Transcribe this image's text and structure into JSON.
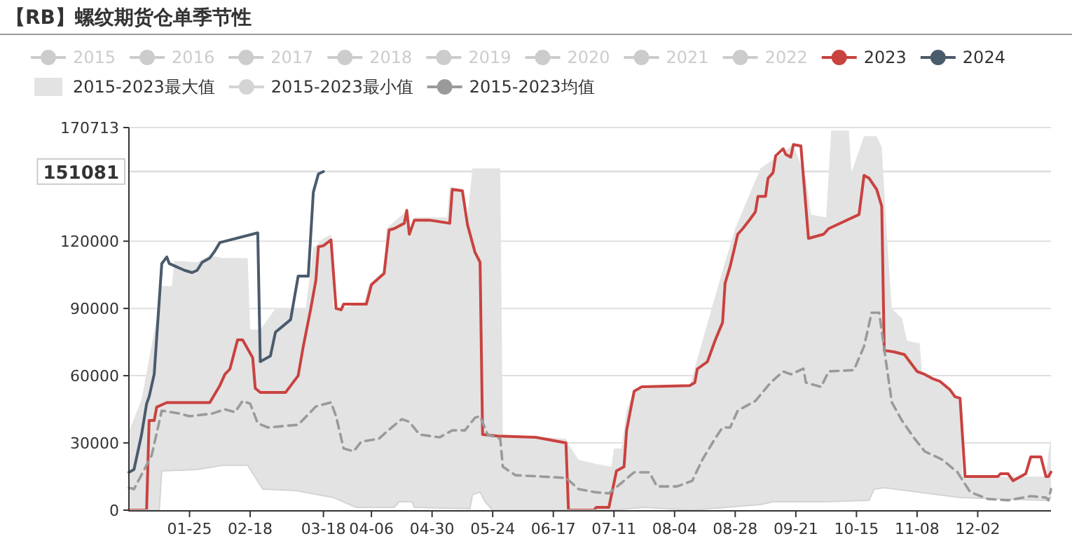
{
  "chart_data": {
    "type": "line",
    "title": "【RB】螺纹期货仓单季节性",
    "legend": "top",
    "grid": "y",
    "xlim": [
      "--01-01",
      "--12-31"
    ],
    "xticks": [
      {
        "value": "--01-25",
        "label": "01-25"
      },
      {
        "value": "--02-18",
        "label": "02-18"
      },
      {
        "value": "--03-18",
        "label": "03-18"
      },
      {
        "value": "--04-06",
        "label": "04-06"
      },
      {
        "value": "--04-30",
        "label": "04-30"
      },
      {
        "value": "--05-24",
        "label": "05-24"
      },
      {
        "value": "--06-17",
        "label": "06-17"
      },
      {
        "value": "--07-11",
        "label": "07-11"
      },
      {
        "value": "--08-04",
        "label": "08-04"
      },
      {
        "value": "--08-28",
        "label": "08-28"
      },
      {
        "value": "--09-21",
        "label": "09-21"
      },
      {
        "value": "--10-15",
        "label": "10-15"
      },
      {
        "value": "--11-08",
        "label": "11-08"
      },
      {
        "value": "--12-02",
        "label": "12-02"
      }
    ],
    "ylim": [
      0,
      170713
    ],
    "yticks": [
      0,
      30000,
      60000,
      90000,
      120000,
      170713
    ],
    "ref_lines": [
      {
        "axis": "y",
        "value": 151081,
        "label": "151081",
        "color": "#dddddd"
      }
    ],
    "series": [
      {
        "name": "2015",
        "color": "#cccccc"
      },
      {
        "name": "2016",
        "color": "#cccccc"
      },
      {
        "name": "2017",
        "color": "#cccccc"
      },
      {
        "name": "2018",
        "color": "#cccccc"
      },
      {
        "name": "2019",
        "color": "#cccccc"
      },
      {
        "name": "2020",
        "color": "#cccccc"
      },
      {
        "name": "2021",
        "color": "#cccccc"
      },
      {
        "name": "2022",
        "color": "#cccccc"
      },
      {
        "name": "2023",
        "color": "#c9423f",
        "type": "line",
        "x": [
          "--01-01",
          "--01-08",
          "--01-09",
          "--01-11",
          "--01-12",
          "--01-16",
          "--02-02",
          "--02-06",
          "--02-08",
          "--02-10",
          "--02-13",
          "--02-15",
          "--02-19",
          "--02-20",
          "--02-22",
          "--03-03",
          "--03-08",
          "--03-10",
          "--03-13",
          "--03-15",
          "--03-16",
          "--03-18",
          "--03-21",
          "--03-23",
          "--03-25",
          "--03-26",
          "--04-04",
          "--04-06",
          "--04-11",
          "--04-13",
          "--04-15",
          "--04-19",
          "--04-20",
          "--04-21",
          "--04-23",
          "--04-29",
          "--05-07",
          "--05-08",
          "--05-12",
          "--05-14",
          "--05-17",
          "--05-19",
          "--05-20",
          "--05-26",
          "--06-10",
          "--06-16",
          "--06-22",
          "--06-23",
          "--07-03",
          "--07-04",
          "--07-09",
          "--07-12",
          "--07-15",
          "--07-16",
          "--07-19",
          "--07-22",
          "--08-10",
          "--08-12",
          "--08-13",
          "--08-17",
          "--08-20",
          "--08-23",
          "--08-24",
          "--08-26",
          "--08-29",
          "--08-31",
          "--09-03",
          "--09-05",
          "--09-06",
          "--09-09",
          "--09-10",
          "--09-12",
          "--09-13",
          "--09-16",
          "--09-17",
          "--09-19",
          "--09-20",
          "--09-23",
          "--09-26",
          "--10-02",
          "--10-04",
          "--10-16",
          "--10-18",
          "--10-20",
          "--10-23",
          "--10-25",
          "--10-26",
          "--10-30",
          "--11-03",
          "--11-08",
          "--11-11",
          "--11-14",
          "--11-17",
          "--11-21",
          "--11-23",
          "--11-25",
          "--11-27",
          "--12-10",
          "--12-11",
          "--12-14",
          "--12-16",
          "--12-21",
          "--12-23",
          "--12-27",
          "--12-29",
          "--12-30",
          "--12-31"
        ],
        "values": [
          0,
          0,
          40000,
          40000,
          46000,
          48000,
          48000,
          55600,
          60600,
          63000,
          76000,
          76000,
          68000,
          54400,
          52500,
          52500,
          60000,
          73000,
          90000,
          102500,
          117500,
          118000,
          120600,
          90000,
          89400,
          91900,
          91900,
          100600,
          105600,
          125000,
          125600,
          128000,
          133750,
          123100,
          129400,
          129400,
          128000,
          143100,
          142500,
          127500,
          115000,
          110600,
          33750,
          33100,
          32500,
          31250,
          30000,
          0,
          0,
          1250,
          1250,
          17500,
          19400,
          35600,
          53100,
          55000,
          55600,
          56900,
          63000,
          66250,
          75600,
          83750,
          101250,
          108750,
          123100,
          125600,
          130000,
          133100,
          140000,
          140000,
          148100,
          150600,
          158100,
          161250,
          158750,
          157500,
          163100,
          162500,
          121250,
          123100,
          125600,
          131900,
          149400,
          148100,
          143100,
          135600,
          71250,
          70600,
          69400,
          61900,
          60600,
          58750,
          57500,
          53750,
          50600,
          50000,
          15000,
          15000,
          16250,
          16250,
          13100,
          16250,
          23750,
          23750,
          15000,
          15000,
          17000
        ]
      },
      {
        "name": "2024",
        "color": "#4a5b6c",
        "type": "line",
        "x": [
          "--01-01",
          "--01-03",
          "--01-06",
          "--01-08",
          "--01-09",
          "--01-11",
          "--01-14",
          "--01-16",
          "--01-17",
          "--01-23",
          "--01-26",
          "--01-28",
          "--01-30",
          "--02-02",
          "--02-04",
          "--02-06",
          "--02-21",
          "--02-22",
          "--02-26",
          "--02-28",
          "--03-01",
          "--03-05",
          "--03-08",
          "--03-12",
          "--03-14",
          "--03-16",
          "--03-18"
        ],
        "values": [
          16900,
          18100,
          33700,
          47500,
          50600,
          60600,
          110000,
          113000,
          110000,
          107000,
          106000,
          107000,
          110600,
          112500,
          115600,
          119400,
          123750,
          66250,
          68750,
          79400,
          81250,
          85000,
          104400,
          104400,
          141900,
          150000,
          151081
        ]
      },
      {
        "name": "2015-2023最大值",
        "color": "#e3e3e3",
        "type": "area",
        "x": [
          "--01-01",
          "--01-06",
          "--01-12",
          "--01-14",
          "--01-18",
          "--01-19",
          "--01-28",
          "--02-02",
          "--02-07",
          "--02-17",
          "--02-18",
          "--02-22",
          "--02-28",
          "--03-11",
          "--03-14",
          "--03-18",
          "--03-21",
          "--03-22",
          "--04-03",
          "--04-05",
          "--04-11",
          "--04-12",
          "--04-20",
          "--04-21",
          "--04-23",
          "--05-06",
          "--05-07",
          "--05-12",
          "--05-14",
          "--05-16",
          "--05-27",
          "--05-28",
          "--06-22",
          "--06-23",
          "--06-27",
          "--07-04",
          "--07-10",
          "--07-11",
          "--07-14",
          "--07-16",
          "--07-19",
          "--08-10",
          "--08-23",
          "--08-28",
          "--09-07",
          "--09-15",
          "--09-20",
          "--09-25",
          "--09-27",
          "--10-03",
          "--10-05",
          "--10-12",
          "--10-13",
          "--10-18",
          "--10-23",
          "--10-25",
          "--10-27",
          "--10-29",
          "--11-02",
          "--11-04",
          "--11-09",
          "--11-10",
          "--11-14",
          "--11-22",
          "--11-25",
          "--11-26",
          "--12-29",
          "--12-30",
          "--12-31"
        ],
        "values": [
          35000,
          49400,
          85600,
          100000,
          100000,
          111250,
          110600,
          113750,
          112500,
          112500,
          80600,
          80600,
          90000,
          90000,
          116900,
          121250,
          123100,
          90000,
          91900,
          100600,
          106900,
          125600,
          133750,
          123100,
          130600,
          130600,
          144400,
          143100,
          130600,
          152500,
          152500,
          33750,
          31900,
          29400,
          22500,
          20600,
          19400,
          27500,
          27500,
          44400,
          53750,
          55600,
          106900,
          125600,
          152500,
          158750,
          163100,
          148100,
          131900,
          130600,
          169400,
          169400,
          150600,
          166900,
          166900,
          161900,
          123100,
          90000,
          85600,
          75600,
          74400,
          60600,
          58750,
          52500,
          49400,
          15000,
          15000,
          25600,
          31900
        ]
      },
      {
        "name": "2015-2023最小值",
        "color": "#d4d4d4",
        "type": "line",
        "x": [
          "--01-01",
          "--01-13",
          "--01-14",
          "--01-28",
          "--02-07",
          "--02-17",
          "--02-23",
          "--03-07",
          "--03-22",
          "--03-31",
          "--04-15",
          "--04-17",
          "--04-22",
          "--04-23",
          "--05-15",
          "--05-16",
          "--05-19",
          "--05-21",
          "--05-24",
          "--07-10",
          "--07-23",
          "--08-11",
          "--09-07",
          "--09-12",
          "--10-03",
          "--10-20",
          "--10-22",
          "--10-26",
          "--11-25",
          "--12-29",
          "--12-31"
        ],
        "values": [
          0,
          0,
          17500,
          18100,
          20000,
          20000,
          9400,
          8750,
          5600,
          1250,
          1250,
          3750,
          3750,
          1250,
          600,
          6900,
          8100,
          3750,
          0,
          0,
          1250,
          0,
          2500,
          3750,
          3750,
          4400,
          9400,
          10000,
          5600,
          4400,
          5600
        ]
      },
      {
        "name": "2015-2023均值",
        "color": "#9a9a9a",
        "type": "line",
        "line_style": "dashed",
        "x": [
          "--01-01",
          "--01-03",
          "--01-10",
          "--01-14",
          "--01-21",
          "--01-25",
          "--02-03",
          "--02-08",
          "--02-12",
          "--02-15",
          "--02-18",
          "--02-21",
          "--02-25",
          "--03-08",
          "--03-15",
          "--03-21",
          "--03-23",
          "--03-26",
          "--03-30",
          "--04-02",
          "--04-09",
          "--04-12",
          "--04-18",
          "--04-21",
          "--04-25",
          "--05-03",
          "--05-08",
          "--05-13",
          "--05-17",
          "--05-19",
          "--05-22",
          "--05-27",
          "--05-28",
          "--06-02",
          "--06-22",
          "--06-27",
          "--07-03",
          "--07-09",
          "--07-13",
          "--07-19",
          "--07-25",
          "--07-28",
          "--08-05",
          "--08-11",
          "--08-15",
          "--08-20",
          "--08-23",
          "--08-26",
          "--08-29",
          "--09-05",
          "--09-11",
          "--09-16",
          "--09-19",
          "--09-24",
          "--09-25",
          "--10-01",
          "--10-04",
          "--10-14",
          "--10-18",
          "--10-21",
          "--10-24",
          "--10-27",
          "--10-29",
          "--11-02",
          "--11-07",
          "--11-11",
          "--11-18",
          "--11-24",
          "--11-29",
          "--12-06",
          "--12-14",
          "--12-23",
          "--12-29",
          "--12-30",
          "--12-31"
        ],
        "values": [
          10000,
          9400,
          24400,
          44400,
          43100,
          41900,
          43100,
          45000,
          43750,
          48750,
          47500,
          38750,
          36900,
          38100,
          46250,
          48100,
          41900,
          27500,
          26250,
          30600,
          31900,
          35000,
          40600,
          39400,
          33750,
          32500,
          35600,
          35600,
          41250,
          41900,
          33750,
          31900,
          19400,
          15600,
          14400,
          9400,
          8100,
          7500,
          11250,
          16900,
          16900,
          10600,
          10600,
          13100,
          22500,
          31900,
          36900,
          36900,
          44400,
          48750,
          56900,
          61900,
          60600,
          63100,
          56900,
          55000,
          61900,
          62500,
          73100,
          88100,
          88100,
          63750,
          48100,
          40000,
          31900,
          26250,
          22500,
          16900,
          8100,
          5000,
          4400,
          6250,
          5600,
          4400,
          9400
        ]
      }
    ]
  }
}
